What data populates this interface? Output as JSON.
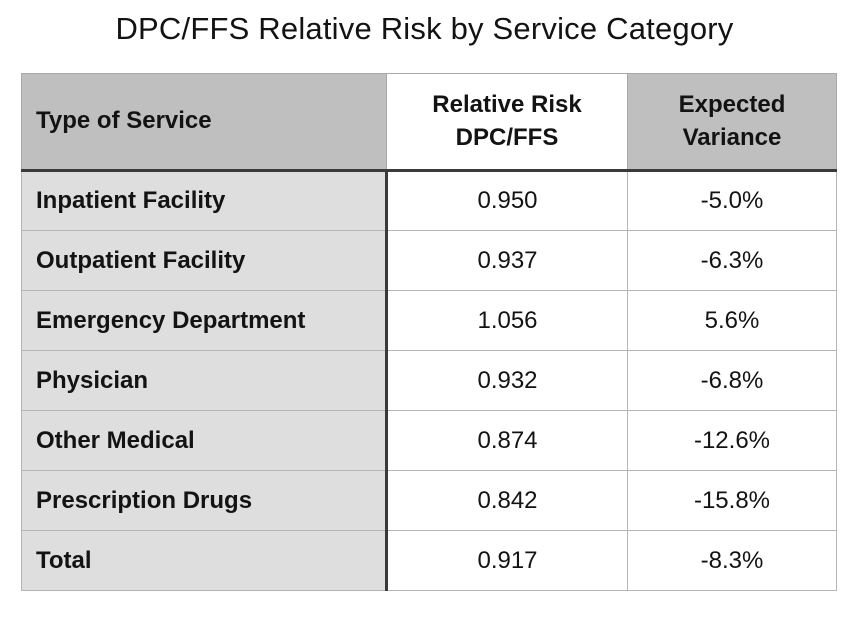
{
  "page": {
    "title": "DPC/FFS Relative Risk by Service Category"
  },
  "table": {
    "headers": [
      {
        "label": "Type of Service"
      },
      {
        "label": "Relative Risk\nDPC/FFS"
      },
      {
        "label": "Expected\nVariance"
      }
    ],
    "rows": [
      [
        "Inpatient Facility",
        "0.950",
        "-5.0%"
      ],
      [
        "Outpatient Facility",
        "0.937",
        "-6.3%"
      ],
      [
        "Emergency Department",
        "1.056",
        "5.6%"
      ],
      [
        "Physician",
        "0.932",
        "-6.8%"
      ],
      [
        "Other Medical",
        "0.874",
        "-12.6%"
      ],
      [
        "Prescription Drugs",
        "0.842",
        "-15.8%"
      ],
      [
        "Total",
        "0.917",
        "-8.3%"
      ]
    ]
  },
  "colors": {
    "header_bg": "#bfbfbf",
    "row_label_bg": "#dedede",
    "dark_border": "#3a3a3a",
    "light_border": "#a9a9a9",
    "row_border": "#b5b5b5",
    "text": "#131313",
    "page_bg": "#ffffff"
  },
  "chart_data": {
    "type": "table",
    "title": "DPC/FFS Relative Risk by Service Category",
    "columns": [
      "Type of Service",
      "Relative Risk DPC/FFS",
      "Expected Variance"
    ],
    "rows": [
      [
        "Inpatient Facility",
        0.95,
        "-5.0%"
      ],
      [
        "Outpatient Facility",
        0.937,
        "-6.3%"
      ],
      [
        "Emergency Department",
        1.056,
        "5.6%"
      ],
      [
        "Physician",
        0.932,
        "-6.8%"
      ],
      [
        "Other Medical",
        0.874,
        "-12.6%"
      ],
      [
        "Prescription Drugs",
        0.842,
        "-15.8%"
      ],
      [
        "Total",
        0.917,
        "-8.3%"
      ]
    ]
  }
}
